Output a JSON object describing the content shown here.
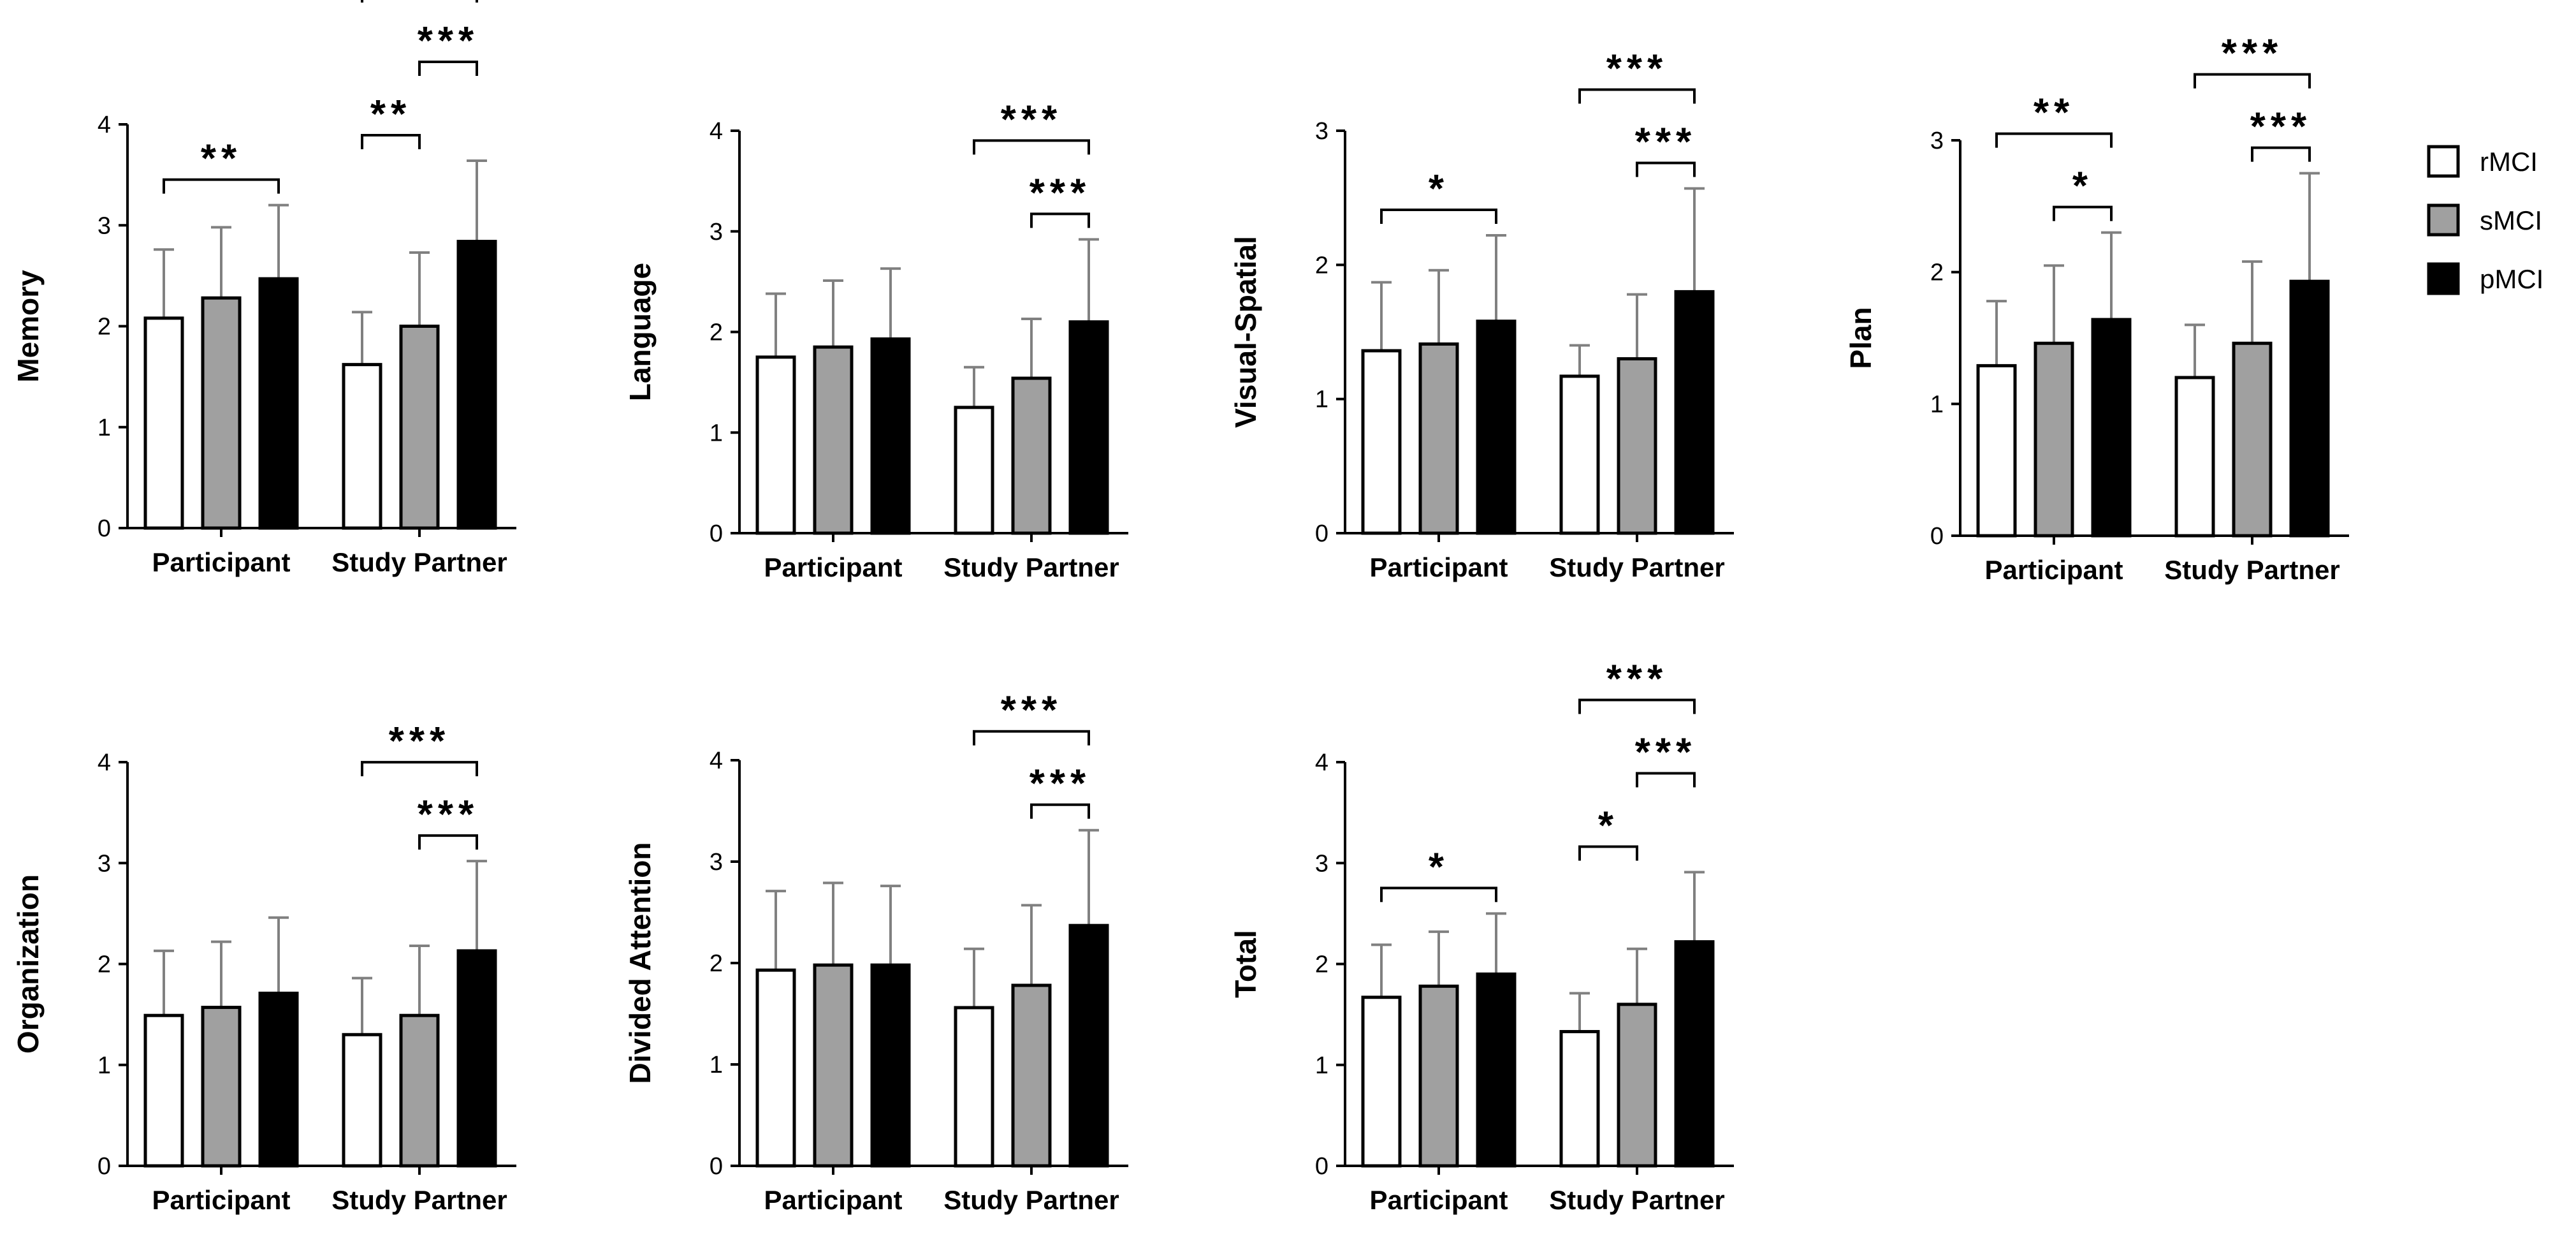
{
  "legend": [
    {
      "label": "rMCI",
      "color": "#ffffff"
    },
    {
      "label": "sMCI",
      "color": "#a0a0a0"
    },
    {
      "label": "pMCI",
      "color": "#000000"
    }
  ],
  "chart_data": [
    {
      "type": "bar",
      "ylabel": "Memory",
      "ylim": [
        0,
        4
      ],
      "yticks": [
        "0",
        "1",
        "2",
        "3",
        "4"
      ],
      "categories": [
        "Participant",
        "Study Partner"
      ],
      "series": [
        {
          "name": "rMCI",
          "values": [
            2.08,
            1.62
          ],
          "errors": [
            0.68,
            0.52
          ]
        },
        {
          "name": "sMCI",
          "values": [
            2.28,
            2.0
          ],
          "errors": [
            0.7,
            0.73
          ]
        },
        {
          "name": "pMCI",
          "values": [
            2.47,
            2.84
          ],
          "errors": [
            0.73,
            0.8
          ]
        }
      ],
      "significance": [
        {
          "group": 0,
          "from": 0,
          "to": 2,
          "label": "**",
          "level": 0
        },
        {
          "group": 1,
          "from": 0,
          "to": 1,
          "label": "**",
          "level": 0
        },
        {
          "group": 1,
          "from": 1,
          "to": 2,
          "label": "***",
          "level": 1
        },
        {
          "group": 1,
          "from": 0,
          "to": 2,
          "label": "***",
          "level": 2
        }
      ]
    },
    {
      "type": "bar",
      "ylabel": "Language",
      "ylim": [
        0,
        4
      ],
      "yticks": [
        "0",
        "1",
        "2",
        "3",
        "4"
      ],
      "categories": [
        "Participant",
        "Study Partner"
      ],
      "series": [
        {
          "name": "rMCI",
          "values": [
            1.75,
            1.25
          ],
          "errors": [
            0.63,
            0.4
          ]
        },
        {
          "name": "sMCI",
          "values": [
            1.85,
            1.54
          ],
          "errors": [
            0.66,
            0.59
          ]
        },
        {
          "name": "pMCI",
          "values": [
            1.93,
            2.1
          ],
          "errors": [
            0.7,
            0.82
          ]
        }
      ],
      "significance": [
        {
          "group": 1,
          "from": 1,
          "to": 2,
          "label": "***",
          "level": 0
        },
        {
          "group": 1,
          "from": 0,
          "to": 2,
          "label": "***",
          "level": 1
        }
      ]
    },
    {
      "type": "bar",
      "ylabel": "Visual-Spatial",
      "ylim": [
        0,
        3
      ],
      "yticks": [
        "0",
        "1",
        "2",
        "3"
      ],
      "categories": [
        "Participant",
        "Study Partner"
      ],
      "series": [
        {
          "name": "rMCI",
          "values": [
            1.36,
            1.17
          ],
          "errors": [
            0.51,
            0.23
          ]
        },
        {
          "name": "sMCI",
          "values": [
            1.41,
            1.3
          ],
          "errors": [
            0.55,
            0.48
          ]
        },
        {
          "name": "pMCI",
          "values": [
            1.58,
            1.8
          ],
          "errors": [
            0.64,
            0.77
          ]
        }
      ],
      "significance": [
        {
          "group": 0,
          "from": 0,
          "to": 2,
          "label": "*",
          "level": 0
        },
        {
          "group": 1,
          "from": 1,
          "to": 2,
          "label": "***",
          "level": 0
        },
        {
          "group": 1,
          "from": 0,
          "to": 2,
          "label": "***",
          "level": 1
        }
      ]
    },
    {
      "type": "bar",
      "ylabel": "Plan",
      "ylim": [
        0,
        3
      ],
      "yticks": [
        "0",
        "1",
        "2",
        "3"
      ],
      "categories": [
        "Participant",
        "Study Partner"
      ],
      "series": [
        {
          "name": "rMCI",
          "values": [
            1.29,
            1.2
          ],
          "errors": [
            0.49,
            0.4
          ]
        },
        {
          "name": "sMCI",
          "values": [
            1.46,
            1.46
          ],
          "errors": [
            0.59,
            0.62
          ]
        },
        {
          "name": "pMCI",
          "values": [
            1.64,
            1.93
          ],
          "errors": [
            0.66,
            0.82
          ]
        }
      ],
      "significance": [
        {
          "group": 0,
          "from": 1,
          "to": 2,
          "label": "*",
          "level": 0
        },
        {
          "group": 0,
          "from": 0,
          "to": 2,
          "label": "**",
          "level": 1
        },
        {
          "group": 1,
          "from": 1,
          "to": 2,
          "label": "***",
          "level": 0
        },
        {
          "group": 1,
          "from": 0,
          "to": 2,
          "label": "***",
          "level": 1
        }
      ]
    },
    {
      "type": "bar",
      "ylabel": "Organization",
      "ylim": [
        0,
        4
      ],
      "yticks": [
        "0",
        "1",
        "2",
        "3",
        "4"
      ],
      "categories": [
        "Participant",
        "Study Partner"
      ],
      "series": [
        {
          "name": "rMCI",
          "values": [
            1.49,
            1.3
          ],
          "errors": [
            0.64,
            0.56
          ]
        },
        {
          "name": "sMCI",
          "values": [
            1.57,
            1.49
          ],
          "errors": [
            0.65,
            0.69
          ]
        },
        {
          "name": "pMCI",
          "values": [
            1.71,
            2.13
          ],
          "errors": [
            0.75,
            0.89
          ]
        }
      ],
      "significance": [
        {
          "group": 1,
          "from": 1,
          "to": 2,
          "label": "***",
          "level": 0
        },
        {
          "group": 1,
          "from": 0,
          "to": 2,
          "label": "***",
          "level": 1
        }
      ]
    },
    {
      "type": "bar",
      "ylabel": "Divided Attention",
      "ylim": [
        0,
        4
      ],
      "yticks": [
        "0",
        "1",
        "2",
        "3",
        "4"
      ],
      "categories": [
        "Participant",
        "Study Partner"
      ],
      "series": [
        {
          "name": "rMCI",
          "values": [
            1.93,
            1.56
          ],
          "errors": [
            0.78,
            0.58
          ]
        },
        {
          "name": "sMCI",
          "values": [
            1.98,
            1.78
          ],
          "errors": [
            0.81,
            0.79
          ]
        },
        {
          "name": "pMCI",
          "values": [
            1.98,
            2.37
          ],
          "errors": [
            0.78,
            0.94
          ]
        }
      ],
      "significance": [
        {
          "group": 1,
          "from": 1,
          "to": 2,
          "label": "***",
          "level": 0
        },
        {
          "group": 1,
          "from": 0,
          "to": 2,
          "label": "***",
          "level": 1
        }
      ]
    },
    {
      "type": "bar",
      "ylabel": "Total",
      "ylim": [
        0,
        4
      ],
      "yticks": [
        "0",
        "1",
        "2",
        "3",
        "4"
      ],
      "categories": [
        "Participant",
        "Study Partner"
      ],
      "series": [
        {
          "name": "rMCI",
          "values": [
            1.67,
            1.33
          ],
          "errors": [
            0.52,
            0.38
          ]
        },
        {
          "name": "sMCI",
          "values": [
            1.78,
            1.6
          ],
          "errors": [
            0.54,
            0.55
          ]
        },
        {
          "name": "pMCI",
          "values": [
            1.9,
            2.22
          ],
          "errors": [
            0.6,
            0.69
          ]
        }
      ],
      "significance": [
        {
          "group": 0,
          "from": 0,
          "to": 2,
          "label": "*",
          "level": 0
        },
        {
          "group": 1,
          "from": 0,
          "to": 1,
          "label": "*",
          "level": 0
        },
        {
          "group": 1,
          "from": 1,
          "to": 2,
          "label": "***",
          "level": 1
        },
        {
          "group": 1,
          "from": 0,
          "to": 2,
          "label": "***",
          "level": 2
        }
      ]
    }
  ]
}
